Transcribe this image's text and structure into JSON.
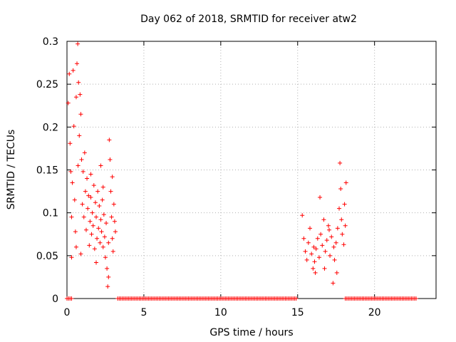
{
  "chart_data": {
    "type": "scatter",
    "title": "Day 062 of 2018, SRMTID for receiver atw2",
    "xlabel": "GPS time / hours",
    "ylabel": "SRMTID / TECUs",
    "xlim": [
      0,
      24
    ],
    "ylim": [
      0,
      0.3
    ],
    "xticks": [
      0,
      5,
      10,
      15,
      20
    ],
    "yticks": [
      0,
      0.05,
      0.1,
      0.15,
      0.2,
      0.25,
      0.3
    ],
    "xtick_labels": [
      "0",
      "5",
      "10",
      "15",
      "20"
    ],
    "ytick_labels": [
      "0",
      "0.05",
      "0.1",
      "0.15",
      "0.2",
      "0.25",
      "0.3"
    ],
    "grid": true,
    "marker": "+",
    "series_color": "#ff0000",
    "series": [
      {
        "name": "SRMTID",
        "points": [
          [
            0.08,
            0.228
          ],
          [
            0.15,
            0.262
          ],
          [
            0.2,
            0.181
          ],
          [
            0.25,
            0.148
          ],
          [
            0.3,
            0.095
          ],
          [
            0.35,
            0.135
          ],
          [
            0.4,
            0.266
          ],
          [
            0.45,
            0.201
          ],
          [
            0.5,
            0.115
          ],
          [
            0.55,
            0.078
          ],
          [
            0.6,
            0.235
          ],
          [
            0.65,
            0.274
          ],
          [
            0.7,
            0.297
          ],
          [
            0.72,
            0.155
          ],
          [
            0.75,
            0.252
          ],
          [
            0.8,
            0.19
          ],
          [
            0.85,
            0.238
          ],
          [
            0.9,
            0.215
          ],
          [
            0.95,
            0.162
          ],
          [
            1.0,
            0.11
          ],
          [
            1.05,
            0.148
          ],
          [
            1.1,
            0.095
          ],
          [
            1.15,
            0.17
          ],
          [
            1.2,
            0.125
          ],
          [
            1.25,
            0.08
          ],
          [
            1.3,
            0.14
          ],
          [
            1.35,
            0.105
          ],
          [
            1.4,
            0.12
          ],
          [
            1.45,
            0.062
          ],
          [
            1.5,
            0.09
          ],
          [
            1.55,
            0.118
          ],
          [
            1.6,
            0.075
          ],
          [
            1.65,
            0.1
          ],
          [
            1.7,
            0.085
          ],
          [
            1.75,
            0.132
          ],
          [
            1.8,
            0.058
          ],
          [
            1.85,
            0.112
          ],
          [
            1.9,
            0.095
          ],
          [
            1.95,
            0.07
          ],
          [
            2.0,
            0.125
          ],
          [
            2.05,
            0.082
          ],
          [
            2.1,
            0.108
          ],
          [
            2.15,
            0.065
          ],
          [
            2.2,
            0.092
          ],
          [
            2.25,
            0.078
          ],
          [
            2.3,
            0.115
          ],
          [
            2.35,
            0.06
          ],
          [
            2.4,
            0.098
          ],
          [
            2.45,
            0.072
          ],
          [
            2.5,
            0.048
          ],
          [
            2.55,
            0.088
          ],
          [
            2.6,
            0.035
          ],
          [
            2.65,
            0.014
          ],
          [
            2.7,
            0.065
          ],
          [
            2.75,
            0.185
          ],
          [
            2.8,
            0.162
          ],
          [
            2.85,
            0.125
          ],
          [
            2.9,
            0.095
          ],
          [
            2.95,
            0.07
          ],
          [
            3.0,
            0.055
          ],
          [
            3.05,
            0.11
          ],
          [
            3.1,
            0.09
          ],
          [
            3.15,
            0.078
          ],
          [
            1.55,
            0.145
          ],
          [
            1.9,
            0.042
          ],
          [
            2.2,
            0.155
          ],
          [
            0.3,
            0.048
          ],
          [
            0.6,
            0.06
          ],
          [
            0.9,
            0.052
          ],
          [
            2.35,
            0.13
          ],
          [
            2.7,
            0.025
          ],
          [
            2.95,
            0.142
          ],
          [
            15.3,
            0.097
          ],
          [
            15.4,
            0.07
          ],
          [
            15.5,
            0.055
          ],
          [
            15.6,
            0.045
          ],
          [
            15.7,
            0.065
          ],
          [
            15.8,
            0.082
          ],
          [
            15.9,
            0.052
          ],
          [
            16.0,
            0.035
          ],
          [
            16.05,
            0.06
          ],
          [
            16.1,
            0.043
          ],
          [
            16.2,
            0.058
          ],
          [
            16.3,
            0.07
          ],
          [
            16.4,
            0.048
          ],
          [
            16.5,
            0.075
          ],
          [
            16.6,
            0.062
          ],
          [
            16.7,
            0.092
          ],
          [
            16.8,
            0.055
          ],
          [
            16.9,
            0.068
          ],
          [
            17.0,
            0.085
          ],
          [
            17.1,
            0.05
          ],
          [
            17.2,
            0.072
          ],
          [
            17.3,
            0.018
          ],
          [
            17.35,
            0.06
          ],
          [
            17.4,
            0.045
          ],
          [
            17.5,
            0.065
          ],
          [
            17.6,
            0.082
          ],
          [
            17.7,
            0.105
          ],
          [
            17.75,
            0.158
          ],
          [
            17.8,
            0.128
          ],
          [
            17.85,
            0.092
          ],
          [
            17.9,
            0.075
          ],
          [
            18.0,
            0.063
          ],
          [
            18.05,
            0.11
          ],
          [
            18.1,
            0.085
          ],
          [
            18.15,
            0.135
          ],
          [
            16.45,
            0.118
          ],
          [
            17.05,
            0.08
          ],
          [
            16.15,
            0.03
          ],
          [
            17.55,
            0.03
          ],
          [
            16.75,
            0.035
          ]
        ]
      }
    ],
    "zero_runs": [
      [
        0.0,
        0.35
      ],
      [
        3.3,
        14.9
      ],
      [
        18.1,
        22.7
      ]
    ]
  }
}
